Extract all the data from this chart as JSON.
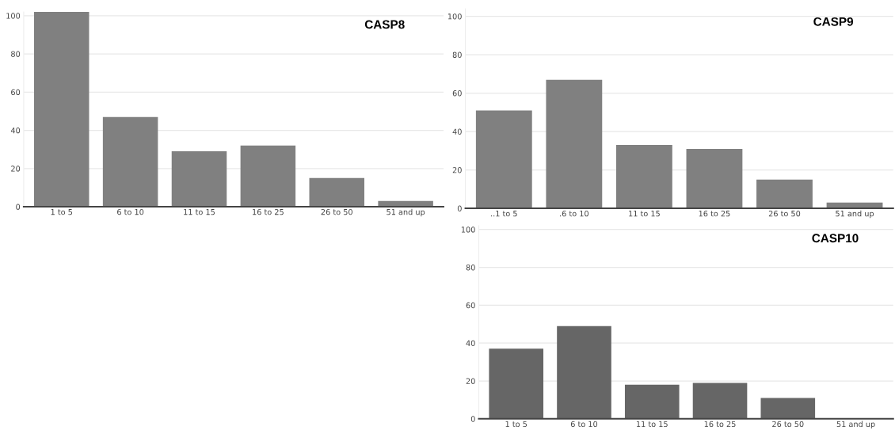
{
  "chart_data": [
    {
      "type": "bar",
      "title": "CASP8",
      "categories": [
        "1 to 5",
        "6 to 10",
        "11 to 15",
        "16 to 25",
        "26 to 50",
        "51 and up"
      ],
      "values": [
        102,
        47,
        29,
        32,
        15,
        3
      ],
      "color": "#808080",
      "ylim": [
        0,
        102
      ],
      "yticks": [
        0,
        20,
        40,
        60,
        80,
        100
      ],
      "grid": "y"
    },
    {
      "type": "bar",
      "title": "CASP9",
      "categories": [
        "..1 to 5",
        ".6 to 10",
        "11 to 15",
        "16 to 25",
        "26 to 50",
        "51 and up"
      ],
      "values": [
        51,
        67,
        33,
        31,
        15,
        3
      ],
      "color": "#808080",
      "ylim": [
        0,
        104
      ],
      "yticks": [
        0,
        20,
        40,
        60,
        80,
        100
      ],
      "grid": "y"
    },
    {
      "type": "bar",
      "title": "CASP10",
      "categories": [
        "1 to 5",
        "6 to 10",
        "11 to 15",
        "16 to 25",
        "26 to 50",
        "51 and up"
      ],
      "values": [
        37,
        49,
        18,
        19,
        11,
        0
      ],
      "color": "#666666",
      "ylim": [
        0,
        102
      ],
      "yticks": [
        0,
        20,
        40,
        60,
        80,
        100
      ],
      "grid": "y"
    }
  ]
}
